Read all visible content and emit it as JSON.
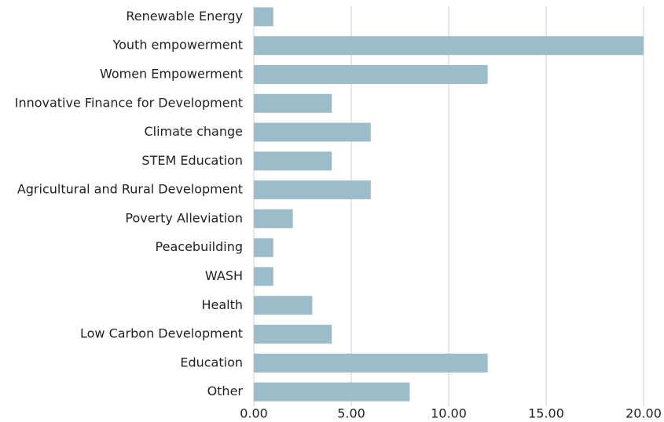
{
  "chart_data": {
    "type": "bar",
    "orientation": "horizontal",
    "categories": [
      "Renewable Energy",
      "Youth empowerment",
      "Women Empowerment",
      "Innovative Finance for Development",
      "Climate change",
      "STEM Education",
      "Agricultural and Rural Development",
      "Poverty Alleviation",
      "Peacebuilding",
      "WASH",
      "Health",
      "Low Carbon Development",
      "Education",
      "Other"
    ],
    "values": [
      1,
      20,
      12,
      4,
      6,
      4,
      6,
      2,
      1,
      1,
      3,
      4,
      12,
      8
    ],
    "color": "#9bbcc8",
    "xlim": [
      0,
      20
    ],
    "xticks": [
      {
        "value": 0,
        "label": "0.00"
      },
      {
        "value": 5,
        "label": "5.00"
      },
      {
        "value": 10,
        "label": "10.00"
      },
      {
        "value": 15,
        "label": "15.00"
      },
      {
        "value": 20,
        "label": "20.00"
      }
    ],
    "grid": true
  }
}
